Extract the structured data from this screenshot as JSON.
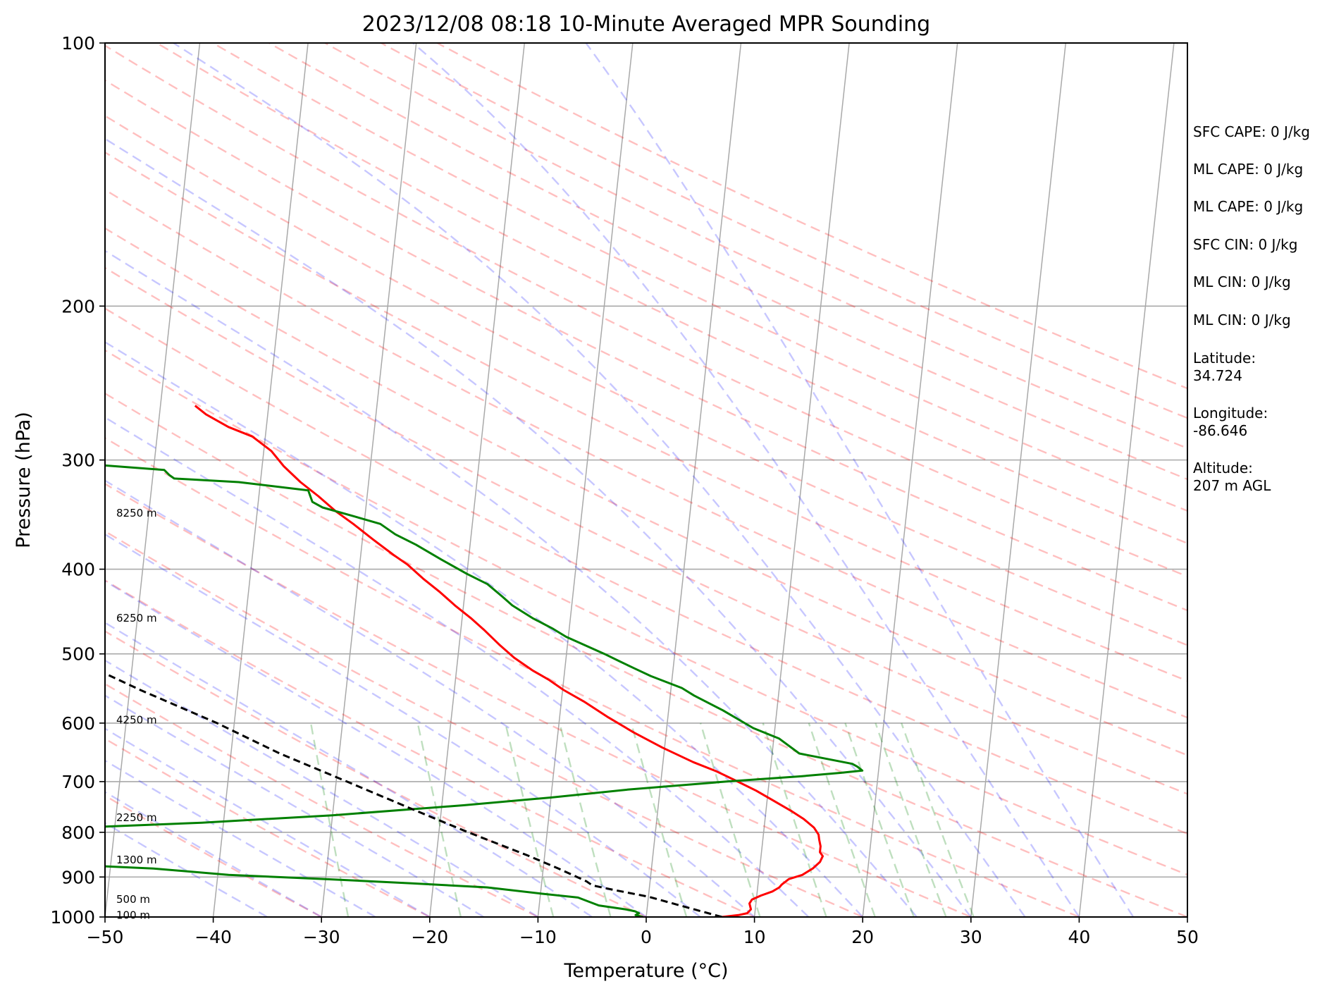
{
  "chart_data": {
    "type": "line",
    "subtype": "skew-t log-p sounding",
    "title": "2023/12/08 08:18 10-Minute Averaged MPR Sounding",
    "xlabel": "Temperature (°C)",
    "ylabel": "Pressure (hPa)",
    "xlim": [
      -50,
      50
    ],
    "ylim": [
      1000,
      100
    ],
    "y_scale": "log",
    "x_ticks": [
      "−50",
      "−40",
      "−30",
      "−20",
      "−10",
      "0",
      "10",
      "20",
      "30",
      "40",
      "50"
    ],
    "y_ticks": [
      "100",
      "200",
      "300",
      "400",
      "500",
      "600",
      "700",
      "800",
      "900",
      "1000"
    ],
    "height_labels": [
      {
        "text": "8250 m",
        "p": 345
      },
      {
        "text": "6250 m",
        "p": 455
      },
      {
        "text": "4250 m",
        "p": 595
      },
      {
        "text": "2250 m",
        "p": 770
      },
      {
        "text": "1300 m",
        "p": 860
      },
      {
        "text": "500 m",
        "p": 955
      },
      {
        "text": "100 m",
        "p": 995
      }
    ],
    "series": [
      {
        "name": "",
        "kind": "temperature",
        "color": "#ff0000",
        "points": [
          [
            7.0,
            1000
          ],
          [
            8.5,
            995
          ],
          [
            9.3,
            990
          ],
          [
            9.6,
            980
          ],
          [
            9.4,
            965
          ],
          [
            9.6,
            955
          ],
          [
            10.4,
            945
          ],
          [
            11.4,
            935
          ],
          [
            12.0,
            925
          ],
          [
            12.2,
            918
          ],
          [
            12.8,
            905
          ],
          [
            14.0,
            895
          ],
          [
            14.9,
            880
          ],
          [
            15.5,
            865
          ],
          [
            15.7,
            852
          ],
          [
            15.4,
            843
          ],
          [
            15.4,
            830
          ],
          [
            15.2,
            815
          ],
          [
            15.1,
            805
          ],
          [
            14.6,
            790
          ],
          [
            13.6,
            773
          ],
          [
            12.4,
            757
          ],
          [
            10.5,
            735
          ],
          [
            8.9,
            717
          ],
          [
            7.1,
            700
          ],
          [
            5.0,
            681
          ],
          [
            2.8,
            665
          ],
          [
            -0.2,
            640
          ],
          [
            -3.0,
            615
          ],
          [
            -5.6,
            590
          ],
          [
            -7.9,
            567
          ],
          [
            -9.9,
            550
          ],
          [
            -11.4,
            535
          ],
          [
            -13.0,
            522
          ],
          [
            -14.8,
            505
          ],
          [
            -16.3,
            488
          ],
          [
            -17.8,
            470
          ],
          [
            -19.2,
            455
          ],
          [
            -20.8,
            440
          ],
          [
            -22.3,
            425
          ],
          [
            -24.0,
            410
          ],
          [
            -25.6,
            395
          ],
          [
            -27.0,
            385
          ],
          [
            -29.0,
            370
          ],
          [
            -31.0,
            355
          ],
          [
            -32.8,
            343
          ],
          [
            -34.5,
            330
          ],
          [
            -36.3,
            318
          ],
          [
            -38.0,
            305
          ],
          [
            -39.3,
            293
          ],
          [
            -41.2,
            282
          ],
          [
            -43.5,
            275
          ],
          [
            -45.7,
            266
          ],
          [
            -46.8,
            260
          ]
        ]
      },
      {
        "name": "",
        "kind": "dewpoint",
        "color": "#008000",
        "points": [
          [
            -0.3,
            1000
          ],
          [
            -1.0,
            995
          ],
          [
            -0.7,
            990
          ],
          [
            -1.1,
            985
          ],
          [
            -2.0,
            980
          ],
          [
            -4.5,
            970
          ],
          [
            -5.5,
            960
          ],
          [
            -6.5,
            950
          ],
          [
            -10.0,
            940
          ],
          [
            -15.0,
            925
          ],
          [
            -22.0,
            915
          ],
          [
            -30.0,
            905
          ],
          [
            -39.0,
            895
          ],
          [
            -46.0,
            880
          ],
          [
            -55.0,
            870
          ],
          [
            -59.0,
            858
          ],
          [
            -60.0,
            852
          ],
          [
            -58.5,
            840
          ],
          [
            -63.0,
            830
          ],
          [
            -62.5,
            823
          ],
          [
            -63.5,
            815
          ],
          [
            -61.5,
            805
          ],
          [
            -53.0,
            790
          ],
          [
            -42.0,
            780
          ],
          [
            -30.0,
            765
          ],
          [
            -18.0,
            745
          ],
          [
            -10.0,
            730
          ],
          [
            -3.0,
            715
          ],
          [
            6.0,
            700
          ],
          [
            13.0,
            690
          ],
          [
            16.5,
            684
          ],
          [
            18.5,
            680
          ],
          [
            18.0,
            673
          ],
          [
            17.5,
            668
          ],
          [
            12.5,
            650
          ],
          [
            10.5,
            625
          ],
          [
            8.0,
            608
          ],
          [
            5.0,
            580
          ],
          [
            2.2,
            558
          ],
          [
            1.0,
            547
          ],
          [
            -2.0,
            530
          ],
          [
            -3.5,
            520
          ],
          [
            -5.0,
            510
          ],
          [
            -6.5,
            500
          ],
          [
            -8.5,
            488
          ],
          [
            -10.2,
            478
          ],
          [
            -11.5,
            468
          ],
          [
            -13.5,
            455
          ],
          [
            -15.5,
            440
          ],
          [
            -16.5,
            430
          ],
          [
            -18.0,
            416
          ],
          [
            -20.0,
            405
          ],
          [
            -22.5,
            390
          ],
          [
            -25.0,
            375
          ],
          [
            -27.0,
            365
          ],
          [
            -28.5,
            355
          ],
          [
            -31.0,
            348
          ],
          [
            -34.0,
            340
          ],
          [
            -35.0,
            335
          ],
          [
            -35.5,
            325
          ],
          [
            -42.0,
            318
          ],
          [
            -48.0,
            315
          ],
          [
            -48.5,
            312
          ],
          [
            -49.0,
            308
          ],
          [
            -55.0,
            304
          ],
          [
            -75.0,
            298
          ],
          [
            -100.0,
            292
          ],
          [
            -118.0,
            288
          ]
        ]
      },
      {
        "name": "",
        "kind": "parcel",
        "color": "#000000",
        "points": [
          [
            7.0,
            1000
          ],
          [
            3.0,
            970
          ],
          [
            0.0,
            948
          ],
          [
            -3.5,
            930
          ],
          [
            -5.3,
            920
          ],
          [
            -5.9,
            910
          ],
          [
            -8.6,
            880
          ],
          [
            -11.6,
            850
          ],
          [
            -17.3,
            800
          ],
          [
            -23.0,
            750
          ],
          [
            -29.0,
            700
          ],
          [
            -35.5,
            650
          ],
          [
            -41.6,
            600
          ],
          [
            -49.0,
            550
          ],
          [
            -56.5,
            500
          ],
          [
            -65.0,
            450
          ],
          [
            -74.5,
            400
          ],
          [
            -86.0,
            350
          ],
          [
            -100.0,
            300
          ],
          [
            -104.0,
            285
          ],
          [
            -109.0,
            270
          ]
        ]
      }
    ]
  },
  "info": [
    "SFC CAPE: 0 J/kg",
    "ML CAPE: 0 J/kg",
    "ML CAPE: 0 J/kg",
    "SFC CIN: 0 J/kg",
    "ML CIN: 0 J/kg",
    "ML CIN: 0 J/kg",
    "Latitude:\n34.724",
    "Longitude:\n-86.646",
    "Altitude:\n207 m AGL"
  ]
}
